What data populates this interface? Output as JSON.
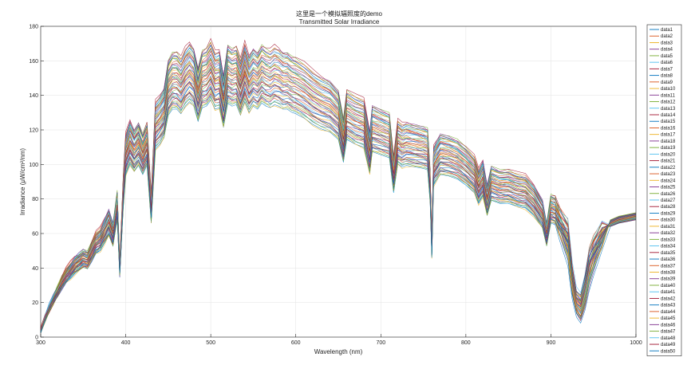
{
  "chart_data": {
    "type": "line",
    "title": "这里是一个模拟辐照度的demo",
    "subtitle": "Transmitted Solar Irradiance",
    "xlabel": "Wavelength (nm)",
    "ylabel": "Irradiance (μW/cm²/nm)",
    "xlim": [
      300,
      1000
    ],
    "ylim": [
      0,
      180
    ],
    "xticks": [
      300,
      400,
      500,
      600,
      700,
      800,
      900,
      1000
    ],
    "yticks": [
      0,
      20,
      40,
      60,
      80,
      100,
      120,
      140,
      160,
      180
    ],
    "grid": true,
    "legend_position": "right-outside",
    "series_count": 50,
    "colors": [
      "#0072BD",
      "#D95319",
      "#EDB120",
      "#7E2F8E",
      "#77AC30",
      "#4DBEEE",
      "#A2142F"
    ],
    "x": [
      300,
      305,
      310,
      315,
      320,
      325,
      330,
      335,
      340,
      345,
      350,
      355,
      360,
      365,
      370,
      375,
      380,
      385,
      390,
      393,
      397,
      400,
      405,
      410,
      415,
      420,
      425,
      430,
      435,
      440,
      445,
      450,
      455,
      460,
      465,
      470,
      475,
      480,
      485,
      490,
      495,
      500,
      505,
      510,
      515,
      520,
      525,
      530,
      535,
      540,
      545,
      550,
      555,
      560,
      565,
      570,
      575,
      580,
      585,
      590,
      595,
      600,
      610,
      620,
      630,
      640,
      650,
      656,
      660,
      670,
      680,
      687,
      690,
      700,
      710,
      715,
      720,
      725,
      730,
      740,
      750,
      755,
      758,
      760,
      762,
      765,
      770,
      780,
      790,
      800,
      810,
      815,
      820,
      825,
      830,
      840,
      850,
      860,
      870,
      880,
      890,
      895,
      900,
      905,
      910,
      920,
      925,
      930,
      935,
      940,
      945,
      950,
      955,
      960,
      970,
      980,
      990,
      1000
    ],
    "base_values": [
      4,
      11,
      17,
      22,
      27,
      32,
      36,
      39,
      42,
      44,
      46,
      45,
      50,
      55,
      57,
      62,
      67,
      60,
      77,
      40,
      84,
      107,
      114,
      109,
      113,
      107,
      113,
      75,
      124,
      127,
      131,
      146,
      150,
      150,
      147,
      152,
      155,
      152,
      142,
      151,
      152,
      156,
      150,
      151,
      138,
      154,
      152,
      153,
      146,
      155,
      148,
      152,
      150,
      154,
      152,
      151,
      153,
      152,
      150,
      150,
      148,
      147,
      144,
      140,
      137,
      135,
      130,
      115,
      130,
      127,
      125,
      108,
      122,
      120,
      118,
      95,
      114,
      112,
      113,
      112,
      111,
      110,
      88,
      52,
      100,
      103,
      107,
      106,
      104,
      100,
      95,
      88,
      93,
      80,
      90,
      88,
      88,
      86,
      85,
      80,
      72,
      60,
      75,
      74,
      72,
      70,
      45,
      30,
      28,
      40,
      55,
      60,
      62,
      64,
      66,
      68,
      69,
      70
    ],
    "series": [
      {
        "name": "data1"
      },
      {
        "name": "data2"
      },
      {
        "name": "data3"
      },
      {
        "name": "data4"
      },
      {
        "name": "data5"
      },
      {
        "name": "data6"
      },
      {
        "name": "data7"
      },
      {
        "name": "data8"
      },
      {
        "name": "data9"
      },
      {
        "name": "data10"
      },
      {
        "name": "data11"
      },
      {
        "name": "data12"
      },
      {
        "name": "data13"
      },
      {
        "name": "data14"
      },
      {
        "name": "data15"
      },
      {
        "name": "data16"
      },
      {
        "name": "data17"
      },
      {
        "name": "data18"
      },
      {
        "name": "data19"
      },
      {
        "name": "data20"
      },
      {
        "name": "data21"
      },
      {
        "name": "data22"
      },
      {
        "name": "data23"
      },
      {
        "name": "data24"
      },
      {
        "name": "data25"
      },
      {
        "name": "data26"
      },
      {
        "name": "data27"
      },
      {
        "name": "data28"
      },
      {
        "name": "data29"
      },
      {
        "name": "data30"
      },
      {
        "name": "data31"
      },
      {
        "name": "data32"
      },
      {
        "name": "data33"
      },
      {
        "name": "data34"
      },
      {
        "name": "data35"
      },
      {
        "name": "data36"
      },
      {
        "name": "data37"
      },
      {
        "name": "data38"
      },
      {
        "name": "data39"
      },
      {
        "name": "data40"
      },
      {
        "name": "data41"
      },
      {
        "name": "data42"
      },
      {
        "name": "data43"
      },
      {
        "name": "data44"
      },
      {
        "name": "data45"
      },
      {
        "name": "data46"
      },
      {
        "name": "data47"
      },
      {
        "name": "data48"
      },
      {
        "name": "data49"
      },
      {
        "name": "data50"
      }
    ]
  }
}
